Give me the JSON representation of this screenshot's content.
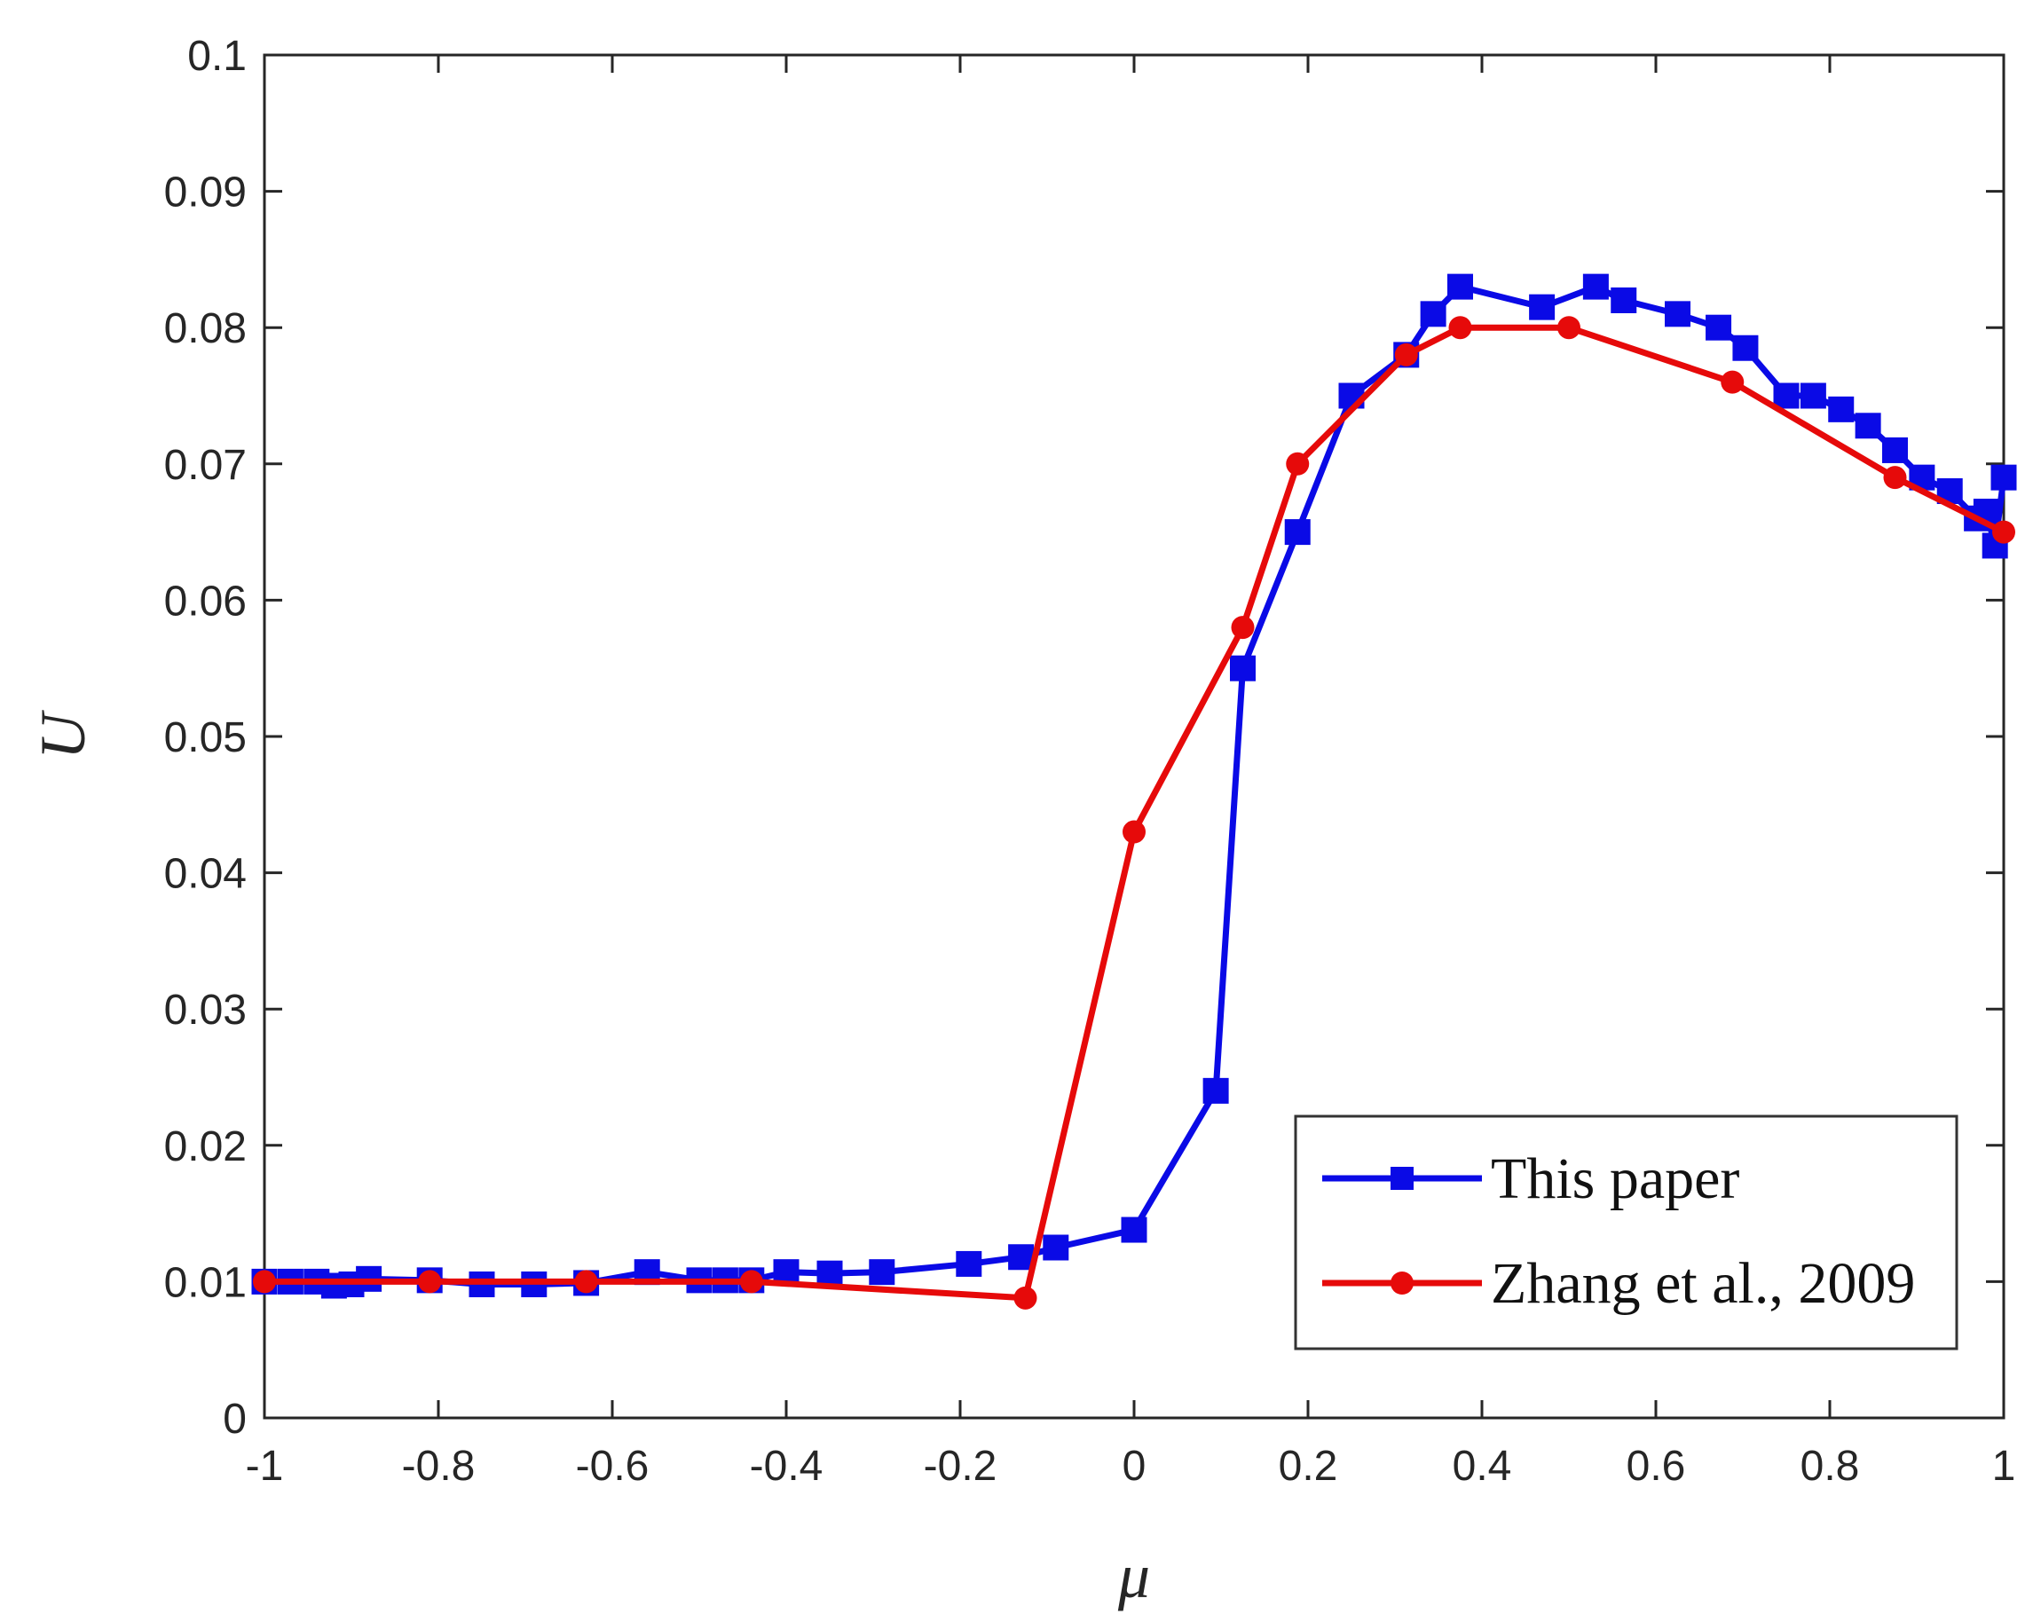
{
  "chart_data": {
    "type": "line",
    "title": "",
    "xlabel": "μ",
    "ylabel": "U",
    "xlim": [
      -1,
      1
    ],
    "ylim": [
      0,
      0.1
    ],
    "xticks": [
      -1,
      -0.8,
      -0.6,
      -0.4,
      -0.2,
      0,
      0.2,
      0.4,
      0.6,
      0.8,
      1
    ],
    "xtick_labels": [
      "-1",
      "-0.8",
      "-0.6",
      "-0.4",
      "-0.2",
      "0",
      "0.2",
      "0.4",
      "0.6",
      "0.8",
      "1"
    ],
    "yticks": [
      0,
      0.01,
      0.02,
      0.03,
      0.04,
      0.05,
      0.06,
      0.07,
      0.08,
      0.09,
      0.1
    ],
    "ytick_labels": [
      "0",
      "0.01",
      "0.02",
      "0.03",
      "0.04",
      "0.05",
      "0.06",
      "0.07",
      "0.08",
      "0.09",
      "0.1"
    ],
    "grid": false,
    "legend_position": "bottom-right",
    "series": [
      {
        "name": "This paper",
        "color": "#0a0ae6",
        "marker": "square",
        "x": [
          -1,
          -0.97,
          -0.94,
          -0.92,
          -0.9,
          -0.88,
          -0.81,
          -0.75,
          -0.69,
          -0.63,
          -0.56,
          -0.5,
          -0.47,
          -0.44,
          -0.4,
          -0.35,
          -0.29,
          -0.19,
          -0.13,
          -0.09,
          0,
          0.094,
          0.125,
          0.188,
          0.25,
          0.313,
          0.344,
          0.375,
          0.469,
          0.531,
          0.563,
          0.625,
          0.672,
          0.703,
          0.75,
          0.781,
          0.813,
          0.844,
          0.875,
          0.906,
          0.938,
          0.969,
          0.98,
          0.99,
          1
        ],
        "y": [
          0.01,
          0.01,
          0.01,
          0.0097,
          0.0098,
          0.0102,
          0.0101,
          0.0098,
          0.0098,
          0.0099,
          0.0107,
          0.0101,
          0.0101,
          0.0101,
          0.0107,
          0.0106,
          0.0107,
          0.0113,
          0.0118,
          0.0125,
          0.0138,
          0.024,
          0.055,
          0.065,
          0.075,
          0.078,
          0.081,
          0.083,
          0.0815,
          0.083,
          0.082,
          0.081,
          0.08,
          0.0785,
          0.075,
          0.075,
          0.074,
          0.0728,
          0.071,
          0.069,
          0.068,
          0.066,
          0.0665,
          0.064,
          0.069
        ]
      },
      {
        "name": "Zhang et al., 2009",
        "color": "#e60a0a",
        "marker": "circle",
        "x": [
          -1,
          -0.81,
          -0.63,
          -0.44,
          -0.125,
          0,
          0.125,
          0.188,
          0.313,
          0.375,
          0.5,
          0.688,
          0.875,
          1
        ],
        "y": [
          0.01,
          0.01,
          0.01,
          0.01,
          0.0088,
          0.043,
          0.058,
          0.07,
          0.078,
          0.08,
          0.08,
          0.076,
          0.069,
          0.065
        ]
      }
    ]
  }
}
